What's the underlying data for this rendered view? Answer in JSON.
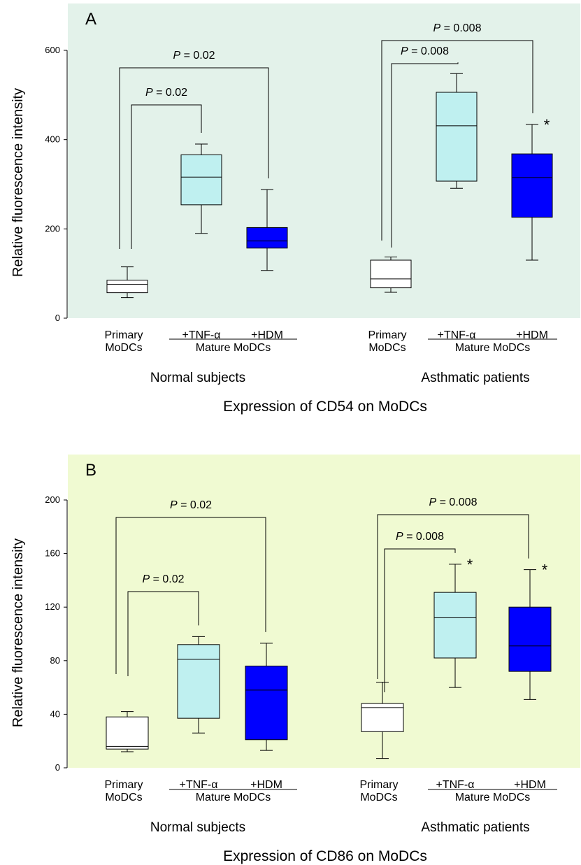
{
  "chart_data": [
    {
      "type": "box",
      "panel_label": "A",
      "title": "Expression of CD54 on MoDCs",
      "ylabel": "Relative fluorescence intensity",
      "ylim": [
        0,
        600
      ],
      "yticks": [
        "0",
        "200",
        "400",
        "600"
      ],
      "background": "#e3f2ea",
      "boxes": [
        {
          "group": "Normal subjects",
          "category": "Primary MoDCs",
          "min": 46,
          "q1": 57,
          "median": 76,
          "q3": 85,
          "max": 115,
          "color": "#ffffff"
        },
        {
          "group": "Normal subjects",
          "category": "+TNF-α",
          "min": 190,
          "q1": 254,
          "median": 316,
          "q3": 366,
          "max": 390,
          "color": "#bff0f0"
        },
        {
          "group": "Normal subjects",
          "category": "+HDM",
          "min": 107,
          "q1": 157,
          "median": 173,
          "q3": 203,
          "max": 288,
          "color": "#0000ff"
        },
        {
          "group": "Asthmatic patients",
          "category": "Primary MoDCs",
          "min": 58,
          "q1": 68,
          "median": 88,
          "q3": 130,
          "max": 137,
          "color": "#ffffff"
        },
        {
          "group": "Asthmatic patients",
          "category": "+TNF-α",
          "min": 291,
          "q1": 307,
          "median": 431,
          "q3": 506,
          "max": 548,
          "color": "#bff0f0"
        },
        {
          "group": "Asthmatic patients",
          "category": "+HDM",
          "min": 130,
          "q1": 226,
          "median": 315,
          "q3": 368,
          "max": 434,
          "color": "#0000ff",
          "asterisk": "*"
        }
      ],
      "comparisons": [
        {
          "group": "Normal subjects",
          "from": "Primary MoDCs",
          "to": "+TNF-α",
          "label": "P = 0.02"
        },
        {
          "group": "Normal subjects",
          "from": "Primary MoDCs",
          "to": "+HDM",
          "label": "P = 0.02"
        },
        {
          "group": "Asthmatic patients",
          "from": "Primary MoDCs",
          "to": "+TNF-α",
          "label": "P = 0.008"
        },
        {
          "group": "Asthmatic patients",
          "from": "Primary MoDCs",
          "to": "+HDM",
          "label": "P = 0.008"
        }
      ],
      "x_labels": {
        "primary_line1": "Primary",
        "primary_line2": "MoDCs",
        "tnf": "+TNF-α",
        "hdm": "+HDM",
        "mature": "Mature MoDCs",
        "group_normal": "Normal subjects",
        "group_asthma": "Asthmatic patients"
      }
    },
    {
      "type": "box",
      "panel_label": "B",
      "title": "Expression of CD86 on MoDCs",
      "ylabel": "Relative fluorescence intensity",
      "ylim": [
        0,
        200
      ],
      "yticks": [
        "0",
        "40",
        "80",
        "120",
        "160",
        "200"
      ],
      "background": "#f0fad2",
      "boxes": [
        {
          "group": "Normal subjects",
          "category": "Primary MoDCs",
          "min": 12,
          "q1": 14,
          "median": 16,
          "q3": 38,
          "max": 42,
          "color": "#ffffff"
        },
        {
          "group": "Normal subjects",
          "category": "+TNF-α",
          "min": 26,
          "q1": 37,
          "median": 81,
          "q3": 92,
          "max": 98,
          "color": "#bff0f0"
        },
        {
          "group": "Normal subjects",
          "category": "+HDM",
          "min": 13,
          "q1": 21,
          "median": 58,
          "q3": 76,
          "max": 93,
          "color": "#0000ff"
        },
        {
          "group": "Asthmatic patients",
          "category": "Primary MoDCs",
          "min": 7,
          "q1": 27,
          "median": 45,
          "q3": 48,
          "max": 64,
          "color": "#ffffff"
        },
        {
          "group": "Asthmatic patients",
          "category": "+TNF-α",
          "min": 60,
          "q1": 82,
          "median": 112,
          "q3": 131,
          "max": 152,
          "color": "#bff0f0",
          "asterisk": "*"
        },
        {
          "group": "Asthmatic patients",
          "category": "+HDM",
          "min": 51,
          "q1": 72,
          "median": 91,
          "q3": 120,
          "max": 148,
          "color": "#0000ff",
          "asterisk": "*"
        }
      ],
      "comparisons": [
        {
          "group": "Normal subjects",
          "from": "Primary MoDCs",
          "to": "+TNF-α",
          "label": "P = 0.02"
        },
        {
          "group": "Normal subjects",
          "from": "Primary MoDCs",
          "to": "+HDM",
          "label": "P = 0.02"
        },
        {
          "group": "Asthmatic patients",
          "from": "Primary MoDCs",
          "to": "+TNF-α",
          "label": "P = 0.008"
        },
        {
          "group": "Asthmatic patients",
          "from": "Primary MoDCs",
          "to": "+HDM",
          "label": "P = 0.008"
        }
      ],
      "x_labels": {
        "primary_line1": "Primary",
        "primary_line2": "MoDCs",
        "tnf": "+TNF-α",
        "hdm": "+HDM",
        "mature": "Mature MoDCs",
        "group_normal": "Normal subjects",
        "group_asthma": "Asthmatic patients"
      }
    }
  ]
}
